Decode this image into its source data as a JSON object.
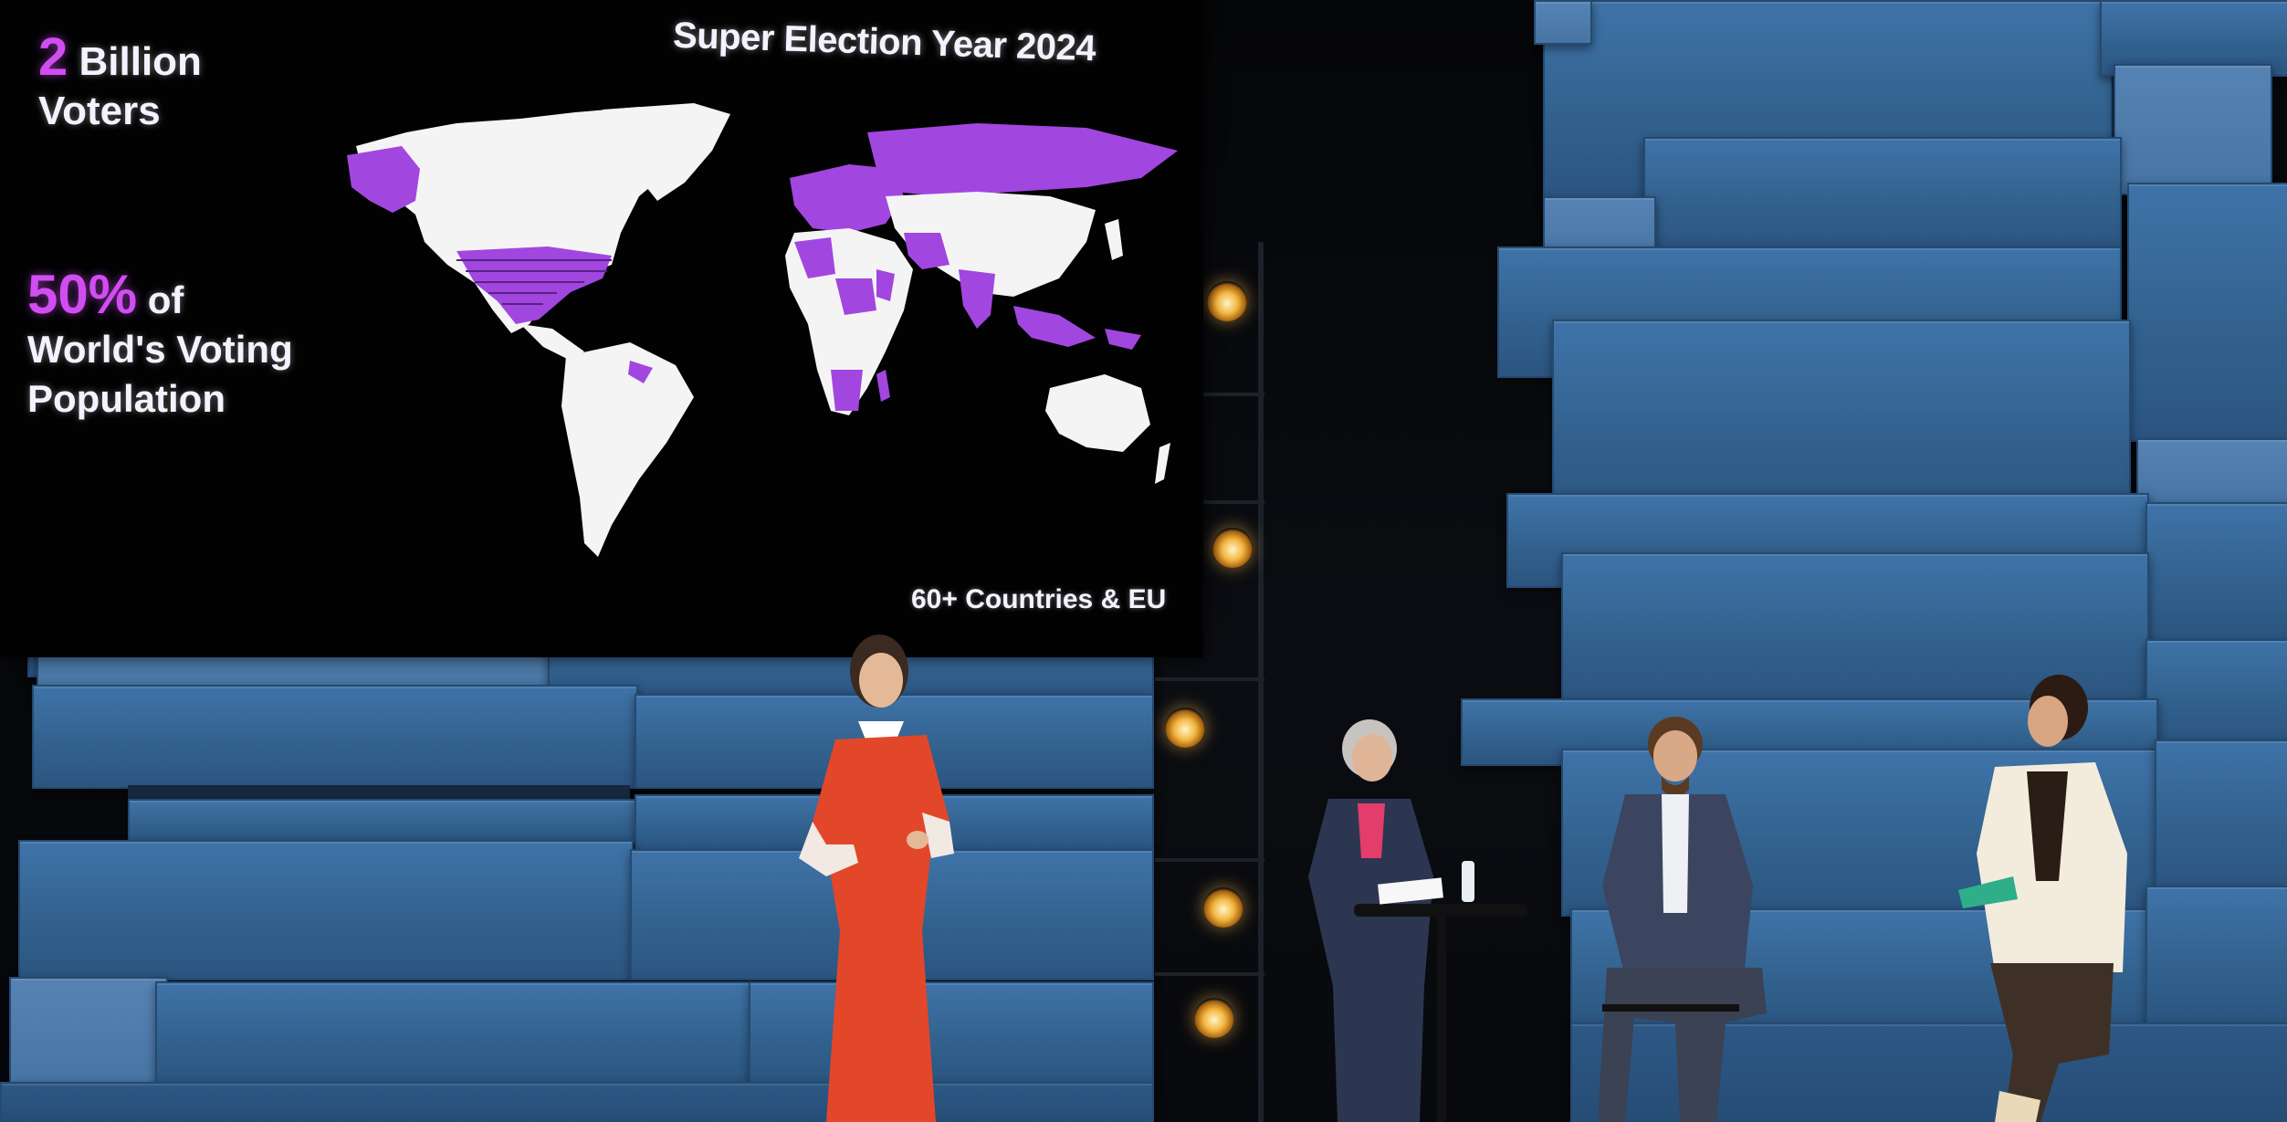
{
  "screen": {
    "title": "Super Election Year 2024",
    "stat_voters_number": "2",
    "stat_voters_line1": "Billion",
    "stat_voters_line2": "Voters",
    "stat_share_number": "50%",
    "stat_share_suffix": "of",
    "stat_share_line2": "World's Voting",
    "stat_share_line3": "Population",
    "map_footer": "60+ Countries & EU"
  },
  "colors": {
    "highlight_purple": "#a246e0",
    "stat_magenta": "#d14df2",
    "land_white": "#f4f4f4",
    "wall_blue": "#3a6b9c",
    "dress_red": "#e2472a"
  }
}
